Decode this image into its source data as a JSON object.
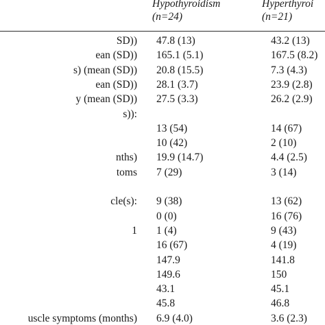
{
  "header": {
    "col_hypo_title": "Hypothyroidism",
    "col_hypo_n": "(n=24)",
    "col_hyper_title": "Hyperthyroi",
    "col_hyper_n": "(n=21)"
  },
  "rows": [
    {
      "label": "SD))",
      "hypo": "47.8 (13)",
      "hyper": "43.2 (13)"
    },
    {
      "label": "ean (SD))",
      "hypo": "165.1 (5.1)",
      "hyper": "167.5 (8.2)"
    },
    {
      "label": "s) (mean (SD))",
      "hypo": "20.8 (15.5)",
      "hyper": "7.3 (4.3)"
    },
    {
      "label": "ean (SD))",
      "hypo": "28.1 (3.7)",
      "hyper": "23.9 (2.8)"
    },
    {
      "label": "y (mean (SD))",
      "hypo": "27.5 (3.3)",
      "hyper": "26.2 (2.9)"
    },
    {
      "label": "s)):",
      "hypo": "",
      "hyper": ""
    },
    {
      "label": "",
      "hypo": "13 (54)",
      "hyper": "14 (67)"
    },
    {
      "label": "",
      "hypo": "10 (42)",
      "hyper": "2 (10)"
    },
    {
      "label": "nths)",
      "hypo": "19.9 (14.7)",
      "hyper": "4.4 (2.5)"
    },
    {
      "label": "toms",
      "hypo": "7 (29)",
      "hyper": "3 (14)"
    },
    {
      "label": "",
      "hypo": "",
      "hyper": ""
    },
    {
      "label": "cle(s):",
      "hypo": "9 (38)",
      "hyper": "13 (62)"
    },
    {
      "label": "",
      "hypo": "0 (0)",
      "hyper": "16 (76)"
    },
    {
      "label": "1",
      "hypo": "1 (4)",
      "hyper": "9 (43)"
    },
    {
      "label": "",
      "hypo": "16 (67)",
      "hyper": "4 (19)"
    },
    {
      "label": "",
      "hypo": "147.9",
      "hyper": "141.8"
    },
    {
      "label": "",
      "hypo": "149.6",
      "hyper": "150"
    },
    {
      "label": "",
      "hypo": "43.1",
      "hyper": "45.1"
    },
    {
      "label": "",
      "hypo": "45.8",
      "hyper": "46.8"
    },
    {
      "label": "uscle symptoms (months)",
      "hypo": "6.9 (4.0)",
      "hyper": "3.6 (2.3)"
    }
  ]
}
